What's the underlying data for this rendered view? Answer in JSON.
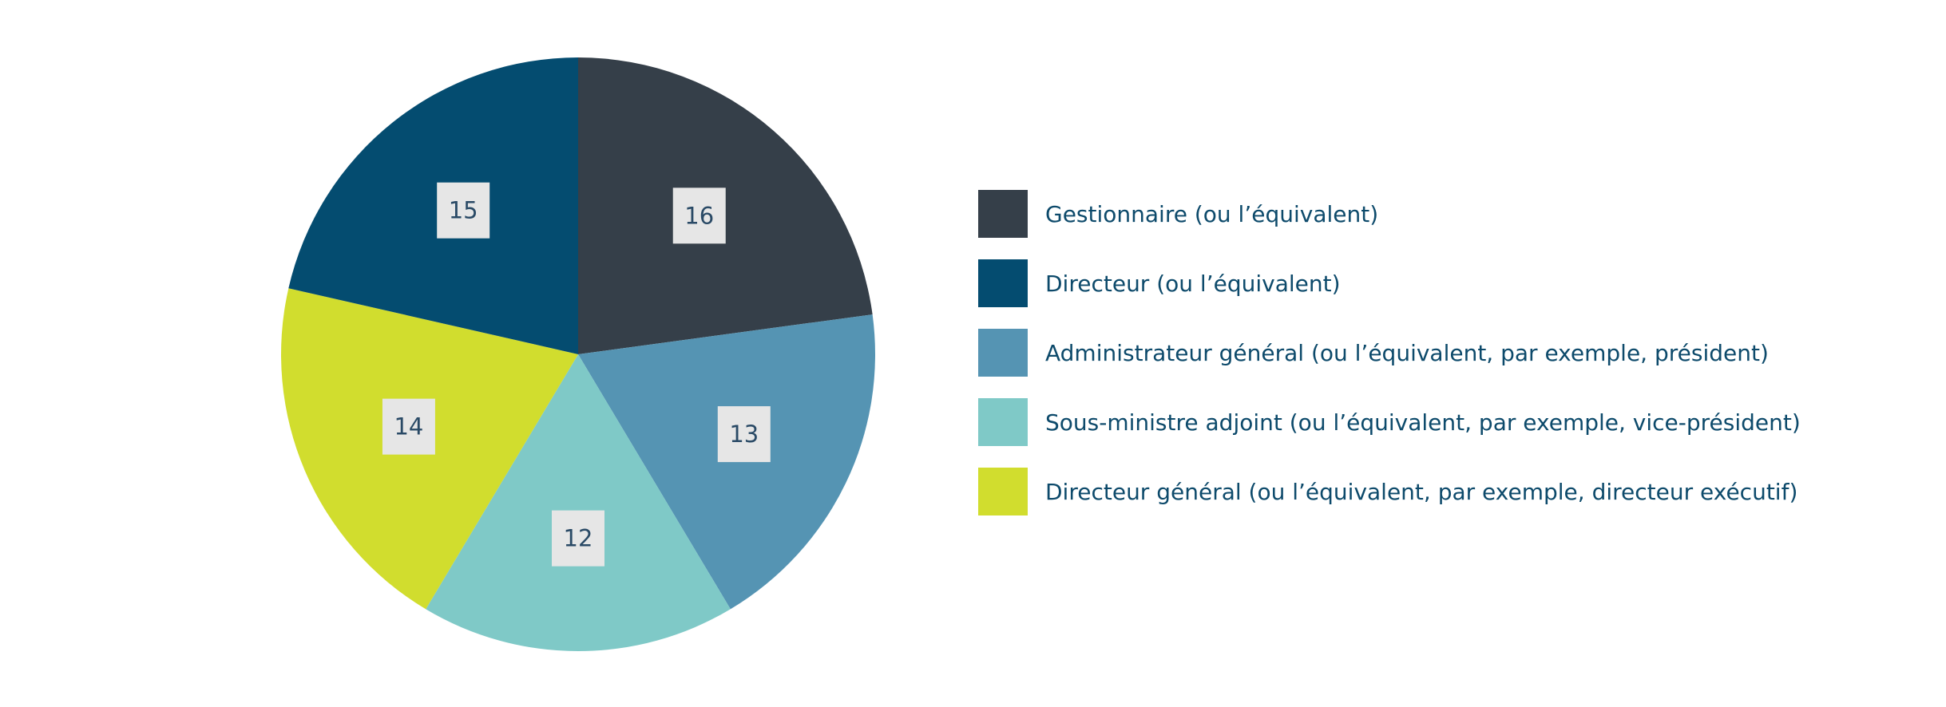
{
  "chart_data": {
    "type": "pie",
    "title": "",
    "start_angle_deg": 0,
    "direction": "clockwise",
    "legend_position": "right",
    "slices": [
      {
        "label": "Gestionnaire (ou l’équivalent)",
        "value": 16,
        "color": "#353f49"
      },
      {
        "label": "Administrateur général (ou l’équivalent, par exemple, président)",
        "value": 13,
        "color": "#5594b3"
      },
      {
        "label": "Sous-ministre adjoint (ou l’équivalent, par exemple, vice-président)",
        "value": 12,
        "color": "#7fc9c7"
      },
      {
        "label": "Directeur général (ou l’équivalent, par exemple, directeur exécutif)",
        "value": 14,
        "color": "#d1dd2e"
      },
      {
        "label": "Directeur (ou l’équivalent)",
        "value": 15,
        "color": "#044c70"
      }
    ],
    "legend": [
      {
        "label": "Gestionnaire (ou l’équivalent)",
        "color": "#353f49"
      },
      {
        "label": "Directeur (ou l’équivalent)",
        "color": "#044c70"
      },
      {
        "label": "Administrateur général (ou l’équivalent, par exemple, président)",
        "color": "#5594b3"
      },
      {
        "label": "Sous-ministre adjoint (ou l’équivalent, par exemple, vice-président)",
        "color": "#7fc9c7"
      },
      {
        "label": "Directeur général (ou l’équivalent, par exemple, directeur exécutif)",
        "color": "#d1dd2e"
      }
    ],
    "label_box_color": "#e6e6e6",
    "label_text_color": "#2a4a66"
  }
}
